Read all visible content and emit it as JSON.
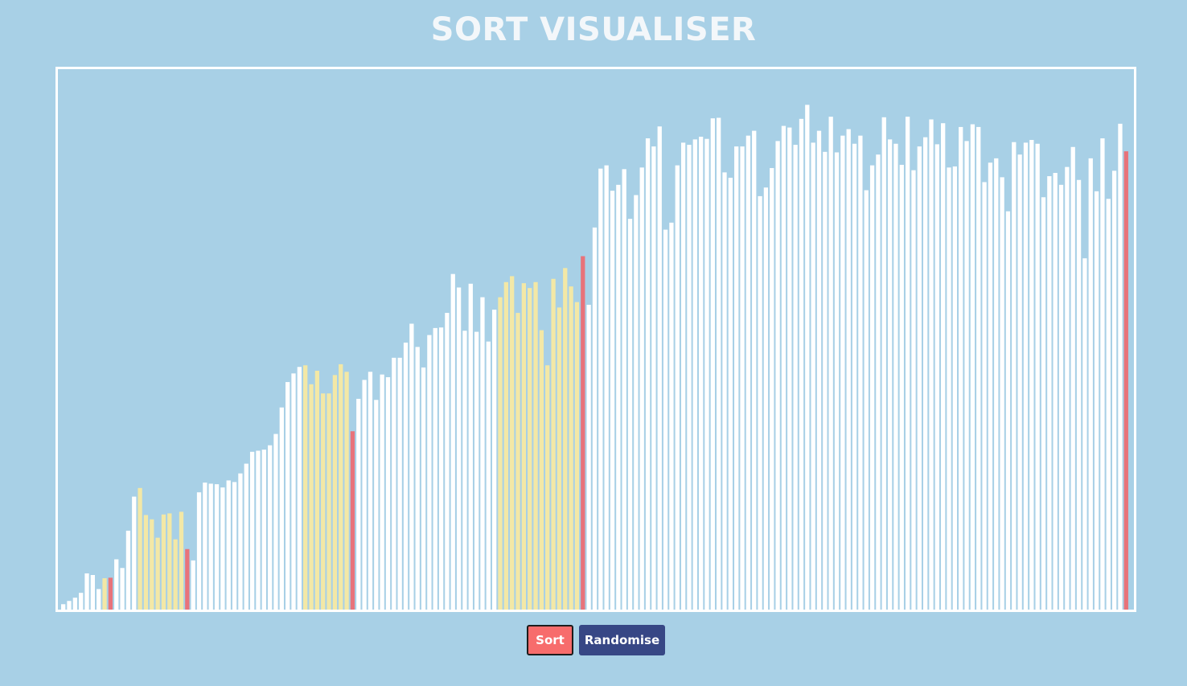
{
  "app": {
    "title": "SORT VISUALISER"
  },
  "controls": {
    "sort_label": "Sort",
    "randomise_label": "Randomise"
  },
  "colors": {
    "background": "#a8d0e6",
    "bar_default": "#ffffff",
    "bar_active": "#f3e8a6",
    "bar_pivot": "#e8737a",
    "button_sort": "#f76c6c",
    "button_randomise": "#374785"
  },
  "chart_data": {
    "type": "bar",
    "ylim": [
      0,
      1000
    ],
    "values": [
      10,
      16,
      22,
      31,
      67,
      64,
      38,
      58,
      59,
      93,
      77,
      146,
      209,
      225,
      175,
      167,
      133,
      176,
      178,
      130,
      181,
      112,
      91,
      217,
      235,
      233,
      232,
      226,
      239,
      236,
      252,
      270,
      292,
      294,
      296,
      304,
      325,
      374,
      421,
      437,
      449,
      452,
      417,
      442,
      400,
      400,
      434,
      454,
      440,
      330,
      390,
      425,
      440,
      388,
      435,
      430,
      466,
      466,
      494,
      529,
      486,
      448,
      508,
      521,
      522,
      549,
      621,
      596,
      516,
      603,
      514,
      578,
      496,
      555,
      578,
      606,
      617,
      549,
      604,
      595,
      606,
      517,
      452,
      612,
      559,
      632,
      598,
      569,
      654,
      564,
      707,
      816,
      822,
      775,
      786,
      815,
      723,
      767,
      818,
      872,
      857,
      894,
      703,
      716,
      822,
      864,
      860,
      870,
      875,
      871,
      909,
      910,
      809,
      799,
      857,
      857,
      877,
      886,
      765,
      781,
      817,
      867,
      895,
      892,
      860,
      908,
      934,
      864,
      886,
      847,
      912,
      846,
      877,
      889,
      862,
      877,
      776,
      822,
      842,
      911,
      870,
      862,
      823,
      912,
      813,
      857,
      874,
      907,
      861,
      900,
      818,
      820,
      893,
      867,
      898,
      893,
      791,
      827,
      835,
      800,
      737,
      865,
      842,
      864,
      869,
      862,
      763,
      802,
      808,
      786,
      819,
      856,
      795,
      650,
      835,
      774,
      872,
      760,
      812,
      899,
      848
    ],
    "states": [
      "d",
      "d",
      "d",
      "d",
      "d",
      "d",
      "d",
      "a",
      "p",
      "d",
      "d",
      "d",
      "d",
      "a",
      "a",
      "a",
      "a",
      "a",
      "a",
      "a",
      "a",
      "p",
      "d",
      "d",
      "d",
      "d",
      "d",
      "d",
      "d",
      "d",
      "d",
      "d",
      "d",
      "d",
      "d",
      "d",
      "d",
      "d",
      "d",
      "d",
      "d",
      "a",
      "a",
      "a",
      "a",
      "a",
      "a",
      "a",
      "a",
      "p",
      "d",
      "d",
      "d",
      "d",
      "d",
      "d",
      "d",
      "d",
      "d",
      "d",
      "d",
      "d",
      "d",
      "d",
      "d",
      "d",
      "d",
      "d",
      "d",
      "d",
      "d",
      "d",
      "d",
      "d",
      "a",
      "a",
      "a",
      "a",
      "a",
      "a",
      "a",
      "a",
      "a",
      "a",
      "a",
      "a",
      "a",
      "a",
      "p",
      "d",
      "d",
      "d",
      "d",
      "d",
      "d",
      "d",
      "d",
      "d",
      "d",
      "d",
      "d",
      "d",
      "d",
      "d",
      "d",
      "d",
      "d",
      "d",
      "d",
      "d",
      "d",
      "d",
      "d",
      "d",
      "d",
      "d",
      "d",
      "d",
      "d",
      "d",
      "d",
      "d",
      "d",
      "d",
      "d",
      "d",
      "d",
      "d",
      "d",
      "d",
      "d",
      "d",
      "d",
      "d",
      "d",
      "d",
      "d",
      "d",
      "d",
      "d",
      "d",
      "d",
      "d",
      "d",
      "d",
      "d",
      "d",
      "d",
      "d",
      "d",
      "d",
      "d",
      "d",
      "d",
      "d",
      "d",
      "d",
      "d",
      "d",
      "d",
      "d",
      "d",
      "d",
      "d",
      "d",
      "d",
      "d",
      "d",
      "d",
      "d",
      "d",
      "d",
      "d",
      "d",
      "d",
      "d",
      "d",
      "d",
      "d",
      "d",
      "p"
    ],
    "state_legend": {
      "d": "default",
      "a": "active",
      "p": "pivot"
    }
  }
}
